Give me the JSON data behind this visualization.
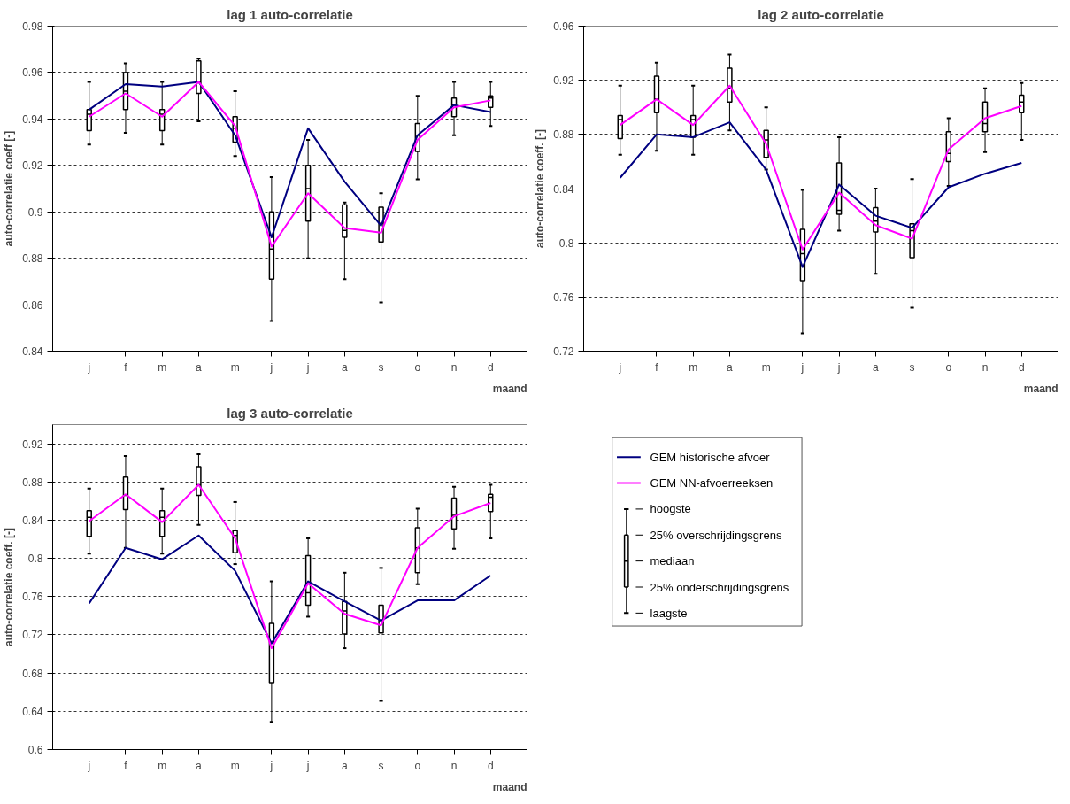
{
  "chart_data": [
    {
      "type": "box",
      "title": "lag 1 auto-correlatie",
      "xlabel": "maand",
      "ylabel": "auto-correlatie coeff [-]",
      "categories": [
        "j",
        "f",
        "m",
        "a",
        "m",
        "j",
        "j",
        "a",
        "s",
        "o",
        "n",
        "d"
      ],
      "ylim": [
        0.84,
        0.98
      ],
      "yticks": [
        0.84,
        0.86,
        0.88,
        0.9,
        0.92,
        0.94,
        0.96,
        0.98
      ],
      "grid": "y",
      "legend": false,
      "boxes": [
        {
          "low": 0.929,
          "q1": 0.935,
          "median": 0.942,
          "q3": 0.944,
          "high": 0.956
        },
        {
          "low": 0.934,
          "q1": 0.944,
          "median": 0.952,
          "q3": 0.96,
          "high": 0.964
        },
        {
          "low": 0.929,
          "q1": 0.935,
          "median": 0.942,
          "q3": 0.944,
          "high": 0.956
        },
        {
          "low": 0.939,
          "q1": 0.951,
          "median": 0.956,
          "q3": 0.965,
          "high": 0.966
        },
        {
          "low": 0.924,
          "q1": 0.93,
          "median": 0.936,
          "q3": 0.941,
          "high": 0.952
        },
        {
          "low": 0.853,
          "q1": 0.871,
          "median": 0.884,
          "q3": 0.9,
          "high": 0.915
        },
        {
          "low": 0.88,
          "q1": 0.896,
          "median": 0.91,
          "q3": 0.92,
          "high": 0.931
        },
        {
          "low": 0.871,
          "q1": 0.889,
          "median": 0.892,
          "q3": 0.903,
          "high": 0.904
        },
        {
          "low": 0.861,
          "q1": 0.887,
          "median": 0.895,
          "q3": 0.902,
          "high": 0.908
        },
        {
          "low": 0.914,
          "q1": 0.926,
          "median": 0.933,
          "q3": 0.938,
          "high": 0.95
        },
        {
          "low": 0.933,
          "q1": 0.941,
          "median": 0.946,
          "q3": 0.949,
          "high": 0.956
        },
        {
          "low": 0.937,
          "q1": 0.945,
          "median": 0.949,
          "q3": 0.95,
          "high": 0.956
        }
      ],
      "series": [
        {
          "type": "line",
          "color": "#000080",
          "values": [
            0.944,
            0.955,
            0.954,
            0.956,
            0.933,
            0.889,
            0.936,
            0.913,
            0.894,
            0.933,
            0.946,
            0.943
          ]
        },
        {
          "type": "line",
          "color": "#ff00ff",
          "values": [
            0.941,
            0.951,
            0.941,
            0.956,
            0.937,
            0.885,
            0.908,
            0.893,
            0.891,
            0.931,
            0.945,
            0.948
          ]
        }
      ]
    },
    {
      "type": "box",
      "title": "lag 2 auto-correlatie",
      "xlabel": "maand",
      "ylabel": "auto-correlatie coeff. [-]",
      "categories": [
        "j",
        "f",
        "m",
        "a",
        "m",
        "j",
        "j",
        "a",
        "s",
        "o",
        "n",
        "d"
      ],
      "ylim": [
        0.72,
        0.96
      ],
      "yticks": [
        0.72,
        0.76,
        0.8,
        0.84,
        0.88,
        0.92,
        0.96
      ],
      "grid": "y",
      "legend": false,
      "boxes": [
        {
          "low": 0.865,
          "q1": 0.877,
          "median": 0.891,
          "q3": 0.894,
          "high": 0.916
        },
        {
          "low": 0.868,
          "q1": 0.896,
          "median": 0.906,
          "q3": 0.923,
          "high": 0.933
        },
        {
          "low": 0.865,
          "q1": 0.878,
          "median": 0.891,
          "q3": 0.894,
          "high": 0.916
        },
        {
          "low": 0.883,
          "q1": 0.904,
          "median": 0.914,
          "q3": 0.929,
          "high": 0.939
        },
        {
          "low": 0.854,
          "q1": 0.863,
          "median": 0.876,
          "q3": 0.883,
          "high": 0.9
        },
        {
          "low": 0.733,
          "q1": 0.772,
          "median": 0.792,
          "q3": 0.81,
          "high": 0.839
        },
        {
          "low": 0.809,
          "q1": 0.821,
          "median": 0.824,
          "q3": 0.859,
          "high": 0.878
        },
        {
          "low": 0.777,
          "q1": 0.808,
          "median": 0.816,
          "q3": 0.826,
          "high": 0.84
        },
        {
          "low": 0.752,
          "q1": 0.789,
          "median": 0.809,
          "q3": 0.814,
          "high": 0.847
        },
        {
          "low": 0.842,
          "q1": 0.86,
          "median": 0.866,
          "q3": 0.882,
          "high": 0.892
        },
        {
          "low": 0.867,
          "q1": 0.882,
          "median": 0.888,
          "q3": 0.904,
          "high": 0.914
        },
        {
          "low": 0.876,
          "q1": 0.896,
          "median": 0.904,
          "q3": 0.909,
          "high": 0.918
        }
      ],
      "series": [
        {
          "type": "line",
          "color": "#000080",
          "values": [
            0.848,
            0.88,
            0.878,
            0.889,
            0.854,
            0.782,
            0.843,
            0.82,
            0.811,
            0.841,
            0.851,
            0.859
          ]
        },
        {
          "type": "line",
          "color": "#ff00ff",
          "values": [
            0.887,
            0.906,
            0.887,
            0.916,
            0.873,
            0.795,
            0.837,
            0.813,
            0.803,
            0.869,
            0.892,
            0.901
          ]
        }
      ]
    },
    {
      "type": "box",
      "title": "lag 3 auto-correlatie",
      "xlabel": "maand",
      "ylabel": "auto-correlatie coeff. [-]",
      "categories": [
        "j",
        "f",
        "m",
        "a",
        "m",
        "j",
        "j",
        "a",
        "s",
        "o",
        "n",
        "d"
      ],
      "ylim": [
        0.6,
        0.94
      ],
      "yticks": [
        0.6,
        0.64,
        0.68,
        0.72,
        0.76,
        0.8,
        0.84,
        0.88,
        0.92
      ],
      "grid": "y",
      "legend": "right",
      "annotations": [
        "hoogste",
        "25% overschrijdingsgrens",
        "mediaan",
        "25% onderschrijdingsgrens",
        "laagste"
      ],
      "boxes": [
        {
          "low": 0.805,
          "q1": 0.823,
          "median": 0.843,
          "q3": 0.85,
          "high": 0.873
        },
        {
          "low": 0.811,
          "q1": 0.851,
          "median": 0.866,
          "q3": 0.885,
          "high": 0.907
        },
        {
          "low": 0.805,
          "q1": 0.823,
          "median": 0.843,
          "q3": 0.85,
          "high": 0.873
        },
        {
          "low": 0.835,
          "q1": 0.866,
          "median": 0.877,
          "q3": 0.896,
          "high": 0.909
        },
        {
          "low": 0.794,
          "q1": 0.806,
          "median": 0.824,
          "q3": 0.829,
          "high": 0.859
        },
        {
          "low": 0.629,
          "q1": 0.67,
          "median": 0.713,
          "q3": 0.732,
          "high": 0.776
        },
        {
          "low": 0.739,
          "q1": 0.751,
          "median": 0.764,
          "q3": 0.803,
          "high": 0.821
        },
        {
          "low": 0.706,
          "q1": 0.721,
          "median": 0.745,
          "q3": 0.755,
          "high": 0.785
        },
        {
          "low": 0.651,
          "q1": 0.722,
          "median": 0.735,
          "q3": 0.751,
          "high": 0.79
        },
        {
          "low": 0.773,
          "q1": 0.785,
          "median": 0.811,
          "q3": 0.832,
          "high": 0.852
        },
        {
          "low": 0.81,
          "q1": 0.831,
          "median": 0.845,
          "q3": 0.863,
          "high": 0.875
        },
        {
          "low": 0.821,
          "q1": 0.849,
          "median": 0.864,
          "q3": 0.867,
          "high": 0.877
        }
      ],
      "series": [
        {
          "type": "line",
          "name": "GEM historische afvoer",
          "color": "#000080",
          "values": [
            0.753,
            0.811,
            0.799,
            0.824,
            0.787,
            0.711,
            0.776,
            0.755,
            0.735,
            0.756,
            0.756,
            0.782
          ]
        },
        {
          "type": "line",
          "name": "GEM NN-afvoerreeksen",
          "color": "#ff00ff",
          "values": [
            0.839,
            0.867,
            0.838,
            0.877,
            0.821,
            0.706,
            0.774,
            0.742,
            0.73,
            0.811,
            0.844,
            0.858
          ]
        }
      ]
    }
  ]
}
